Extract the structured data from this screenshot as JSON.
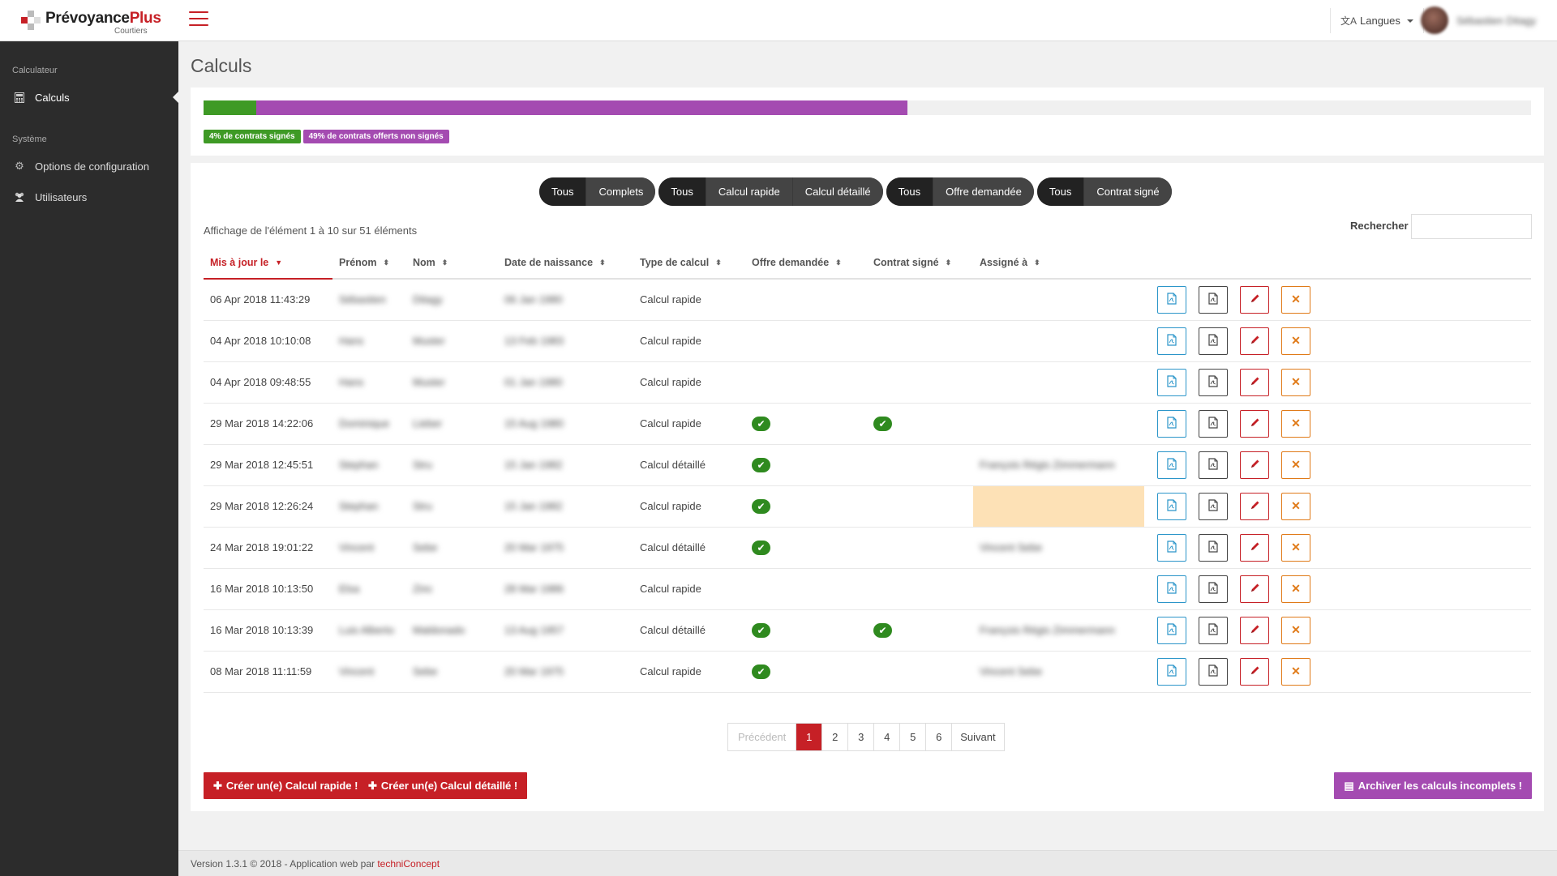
{
  "brand": {
    "name_main": "Prévoyance",
    "name_accent": "Plus",
    "subtitle": "Courtiers",
    "accent_color": "#c62026"
  },
  "topbar": {
    "lang_icon": "translate-icon",
    "lang_label": "Langues",
    "user_name": "Sébastien Ditagy"
  },
  "sidebar": {
    "section1": "Calculateur",
    "calculs_label": "Calculs",
    "section2": "Système",
    "options_label": "Options de configuration",
    "users_label": "Utilisateurs"
  },
  "page": {
    "title": "Calculs"
  },
  "progress": {
    "signed_fraction": 0.04,
    "offered_fraction": 0.49,
    "signed_label": "4% de contrats signés",
    "offered_label": "49% de contrats offerts non signés",
    "colors": {
      "signed": "#3e9a25",
      "offered": "#a44bb1"
    }
  },
  "filters": {
    "g1": [
      "Tous",
      "Complets"
    ],
    "g2": [
      "Tous",
      "Calcul rapide",
      "Calcul détaillé"
    ],
    "g3": [
      "Tous",
      "Offre demandée"
    ],
    "g4": [
      "Tous",
      "Contrat signé"
    ]
  },
  "table": {
    "info": "Affichage de l'élément 1 à 10 sur 51 éléments",
    "search_label": "Rechercher :",
    "search_value": "",
    "headers": {
      "updated": "Mis à jour le",
      "firstname": "Prénom",
      "lastname": "Nom",
      "birthdate": "Date de naissance",
      "type": "Type de calcul",
      "offer": "Offre demandée",
      "contract": "Contrat signé",
      "assigned": "Assigné à"
    },
    "rows": [
      {
        "updated": "06 Apr 2018 11:43:29",
        "firstname": "Sébastien",
        "lastname": "Ditagy",
        "birthdate": "06 Jan 1980",
        "type": "Calcul rapide",
        "offer": false,
        "contract": false,
        "assigned": ""
      },
      {
        "updated": "04 Apr 2018 10:10:08",
        "firstname": "Hans",
        "lastname": "Muster",
        "birthdate": "13 Feb 1983",
        "type": "Calcul rapide",
        "offer": false,
        "contract": false,
        "assigned": ""
      },
      {
        "updated": "04 Apr 2018 09:48:55",
        "firstname": "Hans",
        "lastname": "Muster",
        "birthdate": "01 Jan 1980",
        "type": "Calcul rapide",
        "offer": false,
        "contract": false,
        "assigned": ""
      },
      {
        "updated": "29 Mar 2018 14:22:06",
        "firstname": "Dominique",
        "lastname": "Lieber",
        "birthdate": "15 Aug 1980",
        "type": "Calcul rapide",
        "offer": true,
        "contract": true,
        "assigned": ""
      },
      {
        "updated": "29 Mar 2018 12:45:51",
        "firstname": "Stephan",
        "lastname": "Stru",
        "birthdate": "15 Jan 1982",
        "type": "Calcul détaillé",
        "offer": true,
        "contract": false,
        "assigned": "François Régis Zimmermann"
      },
      {
        "updated": "29 Mar 2018 12:26:24",
        "firstname": "Stephan",
        "lastname": "Stru",
        "birthdate": "15 Jan 1982",
        "type": "Calcul rapide",
        "offer": true,
        "contract": false,
        "assigned": "",
        "highlight": true
      },
      {
        "updated": "24 Mar 2018 19:01:22",
        "firstname": "Vincent",
        "lastname": "Sebe",
        "birthdate": "20 Mar 1975",
        "type": "Calcul détaillé",
        "offer": true,
        "contract": false,
        "assigned": "Vincent Sebe"
      },
      {
        "updated": "16 Mar 2018 10:13:50",
        "firstname": "Elsa",
        "lastname": "Zinc",
        "birthdate": "28 Mar 1986",
        "type": "Calcul rapide",
        "offer": false,
        "contract": false,
        "assigned": ""
      },
      {
        "updated": "16 Mar 2018 10:13:39",
        "firstname": "Luis Alberto",
        "lastname": "Maldonado",
        "birthdate": "13 Aug 1957",
        "type": "Calcul détaillé",
        "offer": true,
        "contract": true,
        "assigned": "François Régis Zimmermann"
      },
      {
        "updated": "08 Mar 2018 11:11:59",
        "firstname": "Vincent",
        "lastname": "Sebe",
        "birthdate": "20 Mar 1975",
        "type": "Calcul rapide",
        "offer": true,
        "contract": false,
        "assigned": "Vincent Sebe"
      }
    ],
    "row_actions": [
      "pdf-offer-icon",
      "pdf-icon",
      "pencil-icon",
      "close-icon"
    ]
  },
  "pagination": {
    "prev": "Précédent",
    "pages": [
      "1",
      "2",
      "3",
      "4",
      "5",
      "6"
    ],
    "current": "1",
    "next": "Suivant"
  },
  "buttons": {
    "create_quick": "Créer un(e) Calcul rapide !",
    "create_detailed": "Créer un(e) Calcul détaillé !",
    "archive": "Archiver les calculs incomplets !"
  },
  "footer": {
    "text": "Version 1.3.1 © 2018 - Application web par ",
    "link": "techniConcept"
  }
}
